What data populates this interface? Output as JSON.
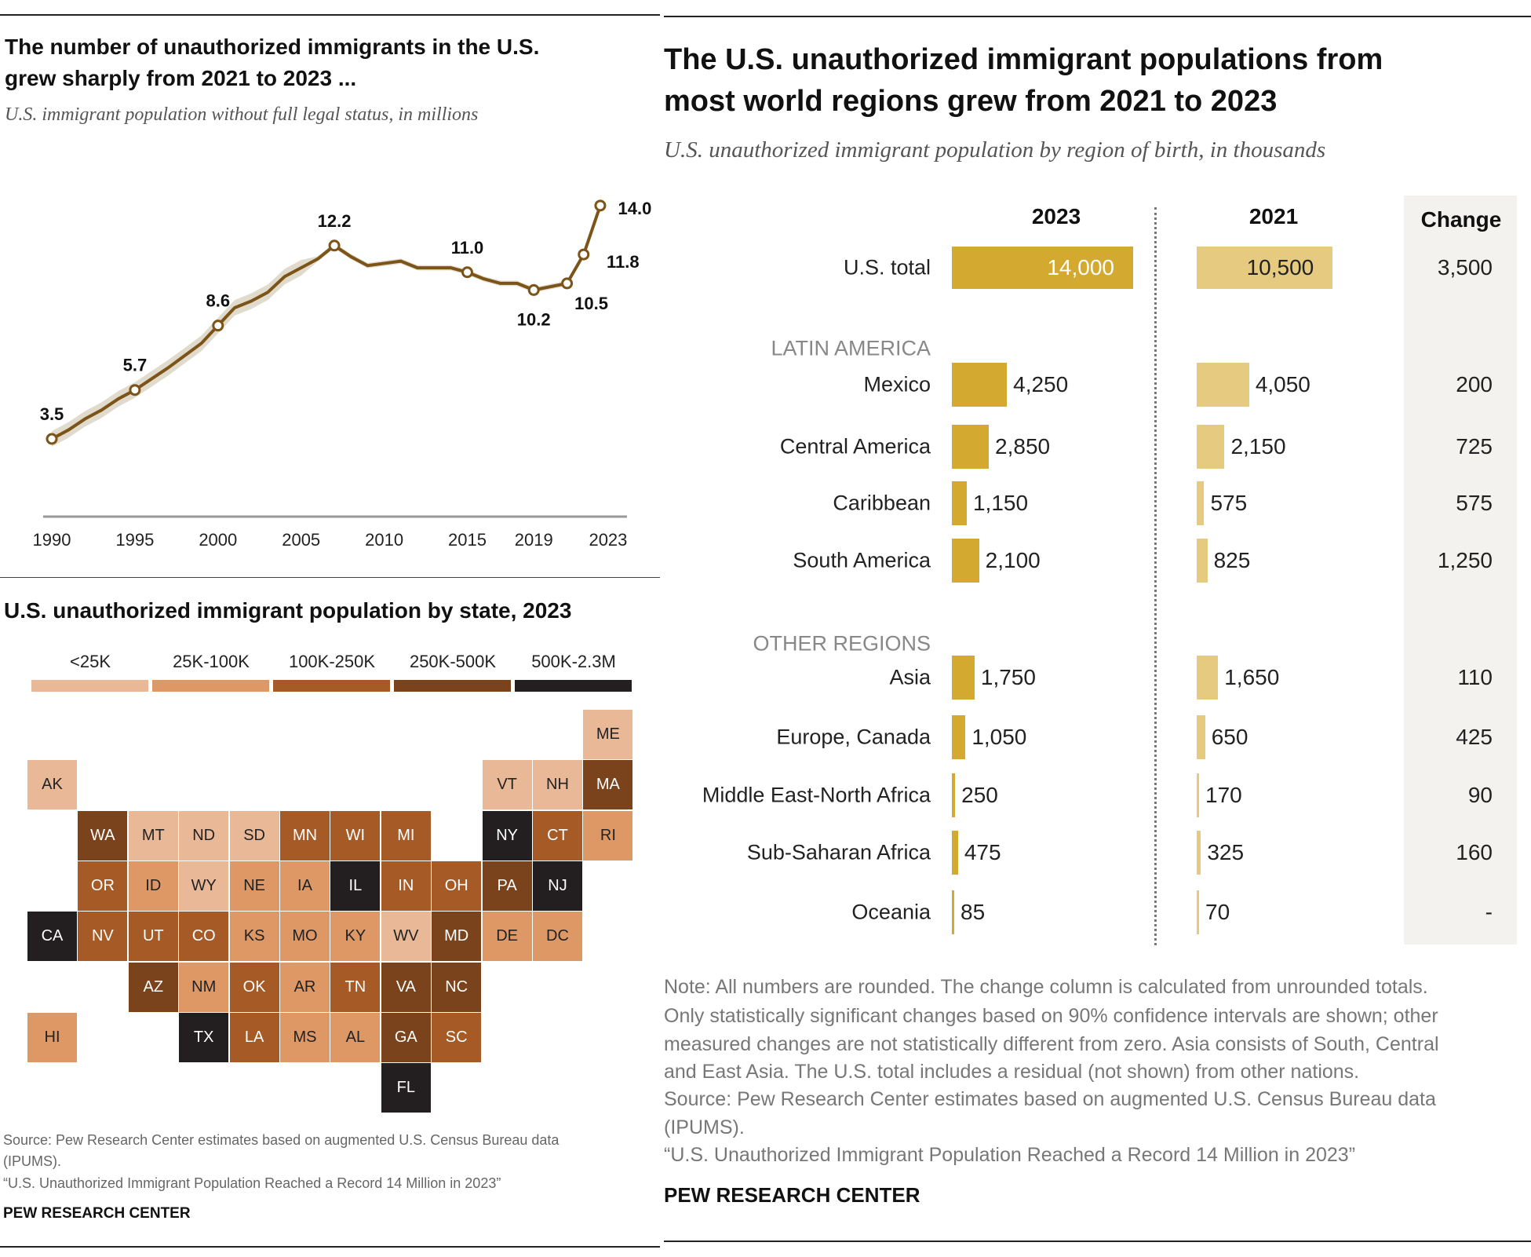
{
  "left_panel": {
    "title_lines": [
      "The number of unauthorized immigrants in the U.S.",
      "grew sharply from 2021 to 2023 ..."
    ],
    "subtitle": "U.S. immigrant population without full legal status, in millions",
    "source_lines": [
      "Source: Pew Research Center estimates based on augmented U.S. Census Bureau data",
      "(IPUMS).",
      "“U.S. Unauthorized Immigrant Population Reached a Record 14 Million in 2023”"
    ],
    "brand": "PEW RESEARCH CENTER"
  },
  "state_map": {
    "title": "U.S. unauthorized immigrant population by state, 2023",
    "legend": [
      {
        "label": "<25K",
        "color": "#e9b896"
      },
      {
        "label": "25K-100K",
        "color": "#dd9866"
      },
      {
        "label": "100K-250K",
        "color": "#a65a26"
      },
      {
        "label": "250K-500K",
        "color": "#7a431c"
      },
      {
        "label": "500K-2.3M",
        "color": "#231f20"
      }
    ],
    "states": [
      {
        "abbr": "ME",
        "category": 0
      },
      {
        "abbr": "AK",
        "category": 0
      },
      {
        "abbr": "VT",
        "category": 0
      },
      {
        "abbr": "NH",
        "category": 0
      },
      {
        "abbr": "MA",
        "category": 3
      },
      {
        "abbr": "WA",
        "category": 3
      },
      {
        "abbr": "MT",
        "category": 0
      },
      {
        "abbr": "ND",
        "category": 0
      },
      {
        "abbr": "SD",
        "category": 0
      },
      {
        "abbr": "MN",
        "category": 2
      },
      {
        "abbr": "WI",
        "category": 2
      },
      {
        "abbr": "MI",
        "category": 2
      },
      {
        "abbr": "NY",
        "category": 4
      },
      {
        "abbr": "CT",
        "category": 2
      },
      {
        "abbr": "RI",
        "category": 1
      },
      {
        "abbr": "OR",
        "category": 2
      },
      {
        "abbr": "ID",
        "category": 1
      },
      {
        "abbr": "WY",
        "category": 0
      },
      {
        "abbr": "NE",
        "category": 1
      },
      {
        "abbr": "IA",
        "category": 1
      },
      {
        "abbr": "IL",
        "category": 4
      },
      {
        "abbr": "IN",
        "category": 2
      },
      {
        "abbr": "OH",
        "category": 2
      },
      {
        "abbr": "PA",
        "category": 3
      },
      {
        "abbr": "NJ",
        "category": 4
      },
      {
        "abbr": "CA",
        "category": 4
      },
      {
        "abbr": "NV",
        "category": 2
      },
      {
        "abbr": "UT",
        "category": 2
      },
      {
        "abbr": "CO",
        "category": 2
      },
      {
        "abbr": "KS",
        "category": 1
      },
      {
        "abbr": "MO",
        "category": 1
      },
      {
        "abbr": "KY",
        "category": 1
      },
      {
        "abbr": "WV",
        "category": 0
      },
      {
        "abbr": "MD",
        "category": 3
      },
      {
        "abbr": "DE",
        "category": 1
      },
      {
        "abbr": "DC",
        "category": 1
      },
      {
        "abbr": "AZ",
        "category": 3
      },
      {
        "abbr": "NM",
        "category": 1
      },
      {
        "abbr": "OK",
        "category": 2
      },
      {
        "abbr": "AR",
        "category": 1
      },
      {
        "abbr": "TN",
        "category": 2
      },
      {
        "abbr": "VA",
        "category": 3
      },
      {
        "abbr": "NC",
        "category": 3
      },
      {
        "abbr": "HI",
        "category": 1
      },
      {
        "abbr": "TX",
        "category": 4
      },
      {
        "abbr": "LA",
        "category": 2
      },
      {
        "abbr": "MS",
        "category": 1
      },
      {
        "abbr": "AL",
        "category": 1
      },
      {
        "abbr": "GA",
        "category": 3
      },
      {
        "abbr": "SC",
        "category": 2
      },
      {
        "abbr": "FL",
        "category": 4
      }
    ]
  },
  "right_panel": {
    "title_lines": [
      "The U.S. unauthorized immigrant populations from",
      "most world regions grew from 2021 to 2023"
    ],
    "subtitle": "U.S. unauthorized immigrant population by region of birth, in thousands",
    "note_lines": [
      "Note: All numbers are rounded. The change column is calculated from unrounded totals.",
      "Only statistically significant changes based on 90% confidence intervals are shown; other",
      "measured changes are not statistically different from zero. Asia consists of South, Central",
      "and East Asia. The U.S. total includes a residual (not shown) from other nations.",
      "Source: Pew Research Center estimates based on augmented U.S. Census Bureau data",
      "(IPUMS).",
      "“U.S. Unauthorized Immigrant Population Reached a Record 14 Million in 2023”"
    ],
    "brand": "PEW RESEARCH CENTER"
  },
  "chart_data": [
    {
      "type": "line",
      "x_ticks": [
        "1990",
        "1995",
        "2000",
        "2005",
        "2010",
        "2015",
        "2019",
        "2023"
      ],
      "color": "#7d5418",
      "band_color": "#d8d2c0",
      "series": [
        {
          "x": [
            1990,
            1991,
            1992,
            1993,
            1994,
            1995,
            1996,
            1997,
            1998,
            1999,
            2000,
            2001,
            2002,
            2003,
            2004,
            2005,
            2006,
            2007,
            2008,
            2009,
            2010,
            2011,
            2012,
            2013,
            2014,
            2015,
            2016,
            2017,
            2018,
            2019,
            2021,
            2022,
            2023
          ],
          "y": [
            3.5,
            3.9,
            4.4,
            4.8,
            5.3,
            5.7,
            6.2,
            6.7,
            7.25,
            7.8,
            8.6,
            9.4,
            9.7,
            10.1,
            10.8,
            11.2,
            11.6,
            12.2,
            11.7,
            11.3,
            11.4,
            11.5,
            11.2,
            11.2,
            11.2,
            11.0,
            10.7,
            10.5,
            10.5,
            10.2,
            10.5,
            11.8,
            14.0
          ]
        }
      ],
      "labeled_points": [
        {
          "x": 1990,
          "label": "3.5"
        },
        {
          "x": 1995,
          "label": "5.7"
        },
        {
          "x": 2000,
          "label": "8.6"
        },
        {
          "x": 2007,
          "label": "12.2"
        },
        {
          "x": 2015,
          "label": "11.0"
        },
        {
          "x": 2019,
          "label": "10.2"
        },
        {
          "x": 2021,
          "label": "10.5"
        },
        {
          "x": 2022,
          "label": "11.8"
        },
        {
          "x": 2023,
          "label": "14.0"
        }
      ]
    },
    {
      "type": "bar",
      "headers": {
        "year_a": "2023",
        "year_b": "2021",
        "change": "Change"
      },
      "colors": {
        "year_a": "#d3a92f",
        "year_b": "#e5ca80",
        "change_bg": "#f3f2ee"
      },
      "rows": [
        {
          "kind": "row",
          "label": "U.S. total",
          "v2023": 14000,
          "v2021": 10500,
          "t2023": "14,000",
          "t2021": "10,500",
          "change": "3,500",
          "total": true
        },
        {
          "kind": "category",
          "label": "LATIN AMERICA"
        },
        {
          "kind": "row",
          "label": "Mexico",
          "v2023": 4250,
          "v2021": 4050,
          "t2023": "4,250",
          "t2021": "4,050",
          "change": "200"
        },
        {
          "kind": "row",
          "label": "Central America",
          "v2023": 2850,
          "v2021": 2150,
          "t2023": "2,850",
          "t2021": "2,150",
          "change": "725"
        },
        {
          "kind": "row",
          "label": "Caribbean",
          "v2023": 1150,
          "v2021": 575,
          "t2023": "1,150",
          "t2021": "575",
          "change": "575"
        },
        {
          "kind": "row",
          "label": "South America",
          "v2023": 2100,
          "v2021": 825,
          "t2023": "2,100",
          "t2021": "825",
          "change": "1,250"
        },
        {
          "kind": "category",
          "label": "OTHER REGIONS"
        },
        {
          "kind": "row",
          "label": "Asia",
          "v2023": 1750,
          "v2021": 1650,
          "t2023": "1,750",
          "t2021": "1,650",
          "change": "110"
        },
        {
          "kind": "row",
          "label": "Europe, Canada",
          "v2023": 1050,
          "v2021": 650,
          "t2023": "1,050",
          "t2021": "650",
          "change": "425"
        },
        {
          "kind": "row",
          "label": "Middle East-North Africa",
          "v2023": 250,
          "v2021": 170,
          "t2023": "250",
          "t2021": "170",
          "change": "90"
        },
        {
          "kind": "row",
          "label": "Sub-Saharan Africa",
          "v2023": 475,
          "v2021": 325,
          "t2023": "475",
          "t2021": "325",
          "change": "160"
        },
        {
          "kind": "row",
          "label": "Oceania",
          "v2023": 85,
          "v2021": 70,
          "t2023": "85",
          "t2021": "70",
          "change": "-"
        }
      ]
    }
  ]
}
